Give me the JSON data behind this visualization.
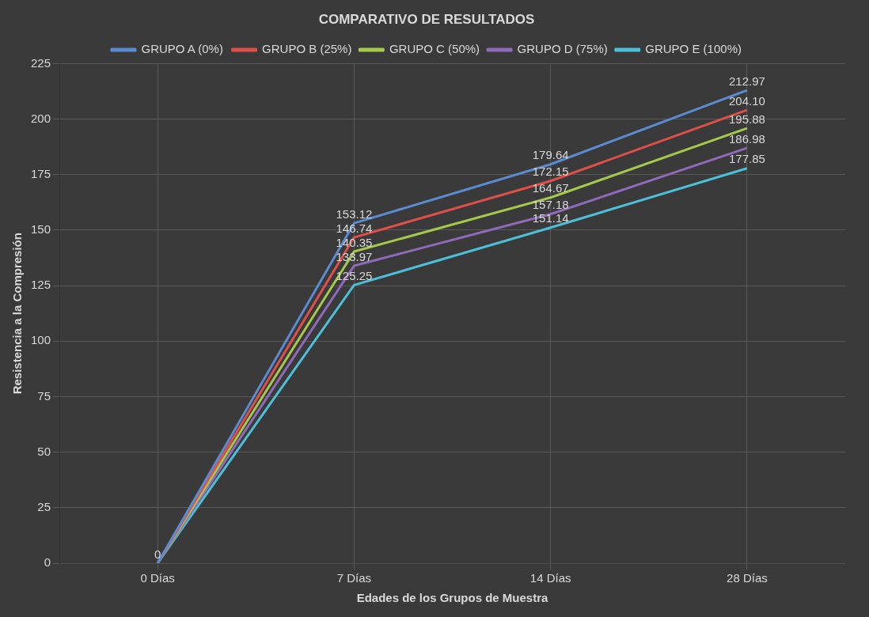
{
  "chart_data": {
    "type": "line",
    "title": "COMPARATIVO DE RESULTADOS",
    "xlabel": "Edades de los Grupos de Muestra",
    "ylabel": "Resistencia a la Compresión",
    "categories": [
      "0 Días",
      "7 Días",
      "14 Días",
      "28 Días"
    ],
    "series": [
      {
        "name": "GRUPO A (0%)",
        "color": "#5b8bd0",
        "values": [
          0,
          153.12,
          179.64,
          212.97
        ],
        "value_labels": [
          "0",
          "153.12",
          "179.64",
          "212.97"
        ]
      },
      {
        "name": "GRUPO B (25%)",
        "color": "#e0504a",
        "values": [
          0,
          146.74,
          172.15,
          204.1
        ],
        "value_labels": [
          null,
          "146.74",
          "172.15",
          "204.10"
        ]
      },
      {
        "name": "GRUPO C (50%)",
        "color": "#a6c94a",
        "values": [
          0,
          140.35,
          164.67,
          195.88
        ],
        "value_labels": [
          null,
          "140.35",
          "164.67",
          "195.88"
        ]
      },
      {
        "name": "GRUPO D (75%)",
        "color": "#8e6bb8",
        "values": [
          0,
          133.97,
          157.18,
          186.98
        ],
        "value_labels": [
          null,
          "133.97",
          "157.18",
          "186.98"
        ]
      },
      {
        "name": "GRUPO E (100%)",
        "color": "#4bc0d8",
        "values": [
          0,
          125.25,
          151.14,
          177.85
        ],
        "value_labels": [
          null,
          "125.25",
          "151.14",
          "177.85"
        ]
      }
    ],
    "ylim": [
      0,
      225
    ],
    "yticks": [
      0,
      25,
      50,
      75,
      100,
      125,
      150,
      175,
      200,
      225
    ],
    "grid": true,
    "legend": "top",
    "marker": "none",
    "line_style": "solid"
  }
}
